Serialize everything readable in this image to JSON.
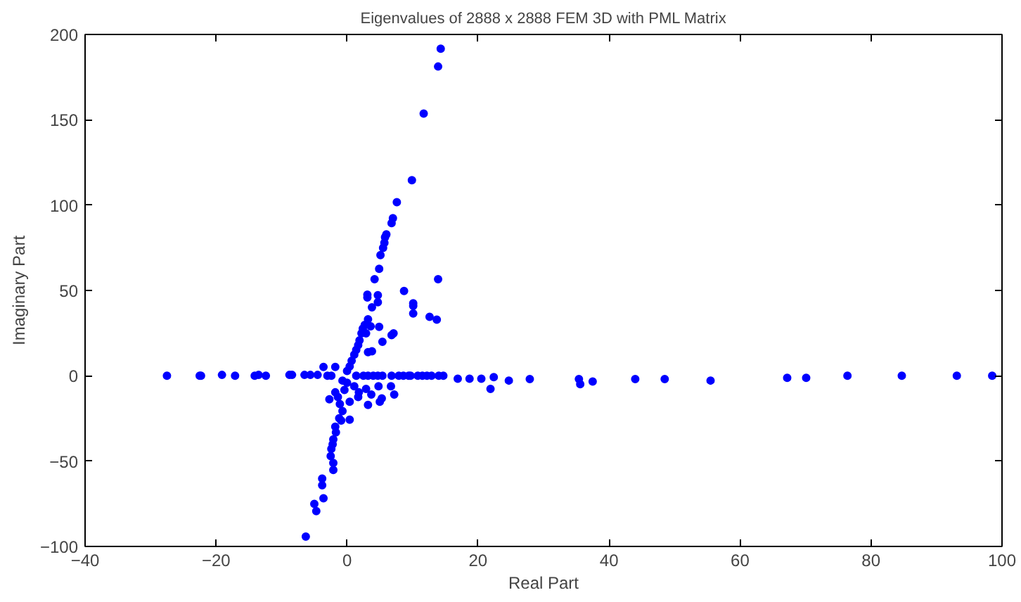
{
  "chart_data": {
    "type": "scatter",
    "title": "Eigenvalues of 2888 x 2888 FEM 3D with PML Matrix",
    "xlabel": "Real Part",
    "ylabel": "Imaginary Part",
    "xlim": [
      -40,
      100
    ],
    "xticks": [
      -40,
      -20,
      0,
      20,
      40,
      60,
      80,
      100
    ],
    "ylim": [
      -100,
      200
    ],
    "yticks": [
      -100,
      -50,
      0,
      50,
      100,
      150,
      200
    ],
    "grid": false,
    "marker": "circle",
    "series": [
      {
        "color": "#0000ff",
        "x": [
          14.3,
          13.9,
          11.7,
          9.9,
          7.6,
          7.0,
          6.8,
          6.0,
          5.8,
          5.7,
          5.5,
          5.1,
          4.9,
          4.2,
          13.9,
          8.7,
          4.7,
          3.1,
          3.1,
          4.7,
          10.1,
          3.8,
          10.1,
          10.1,
          12.6,
          13.7,
          4.9,
          7.1,
          6.8,
          5.4,
          3.8,
          3.2,
          2.7,
          2.4,
          2.2,
          1.9,
          1.7,
          1.4,
          1.1,
          0.7,
          0.4,
          0.0,
          2.9,
          3.6,
          3.2,
          -27.5,
          -22.5,
          -22.3,
          -19.1,
          -17.1,
          -14.1,
          -13.5,
          -12.4,
          -8.8,
          -8.4,
          -6.5,
          -5.6,
          -4.5,
          -3.6,
          -3.0,
          -1.8,
          -2.4,
          1.4,
          2.5,
          3.2,
          4.0,
          4.7,
          5.4,
          6.8,
          7.9,
          8.6,
          9.4,
          9.7,
          10.8,
          11.5,
          12.2,
          12.9,
          14.0,
          14.7,
          16.9,
          18.7,
          20.5,
          22.4,
          21.9,
          24.7,
          27.9,
          35.4,
          35.6,
          37.5,
          44.0,
          48.5,
          55.5,
          67.2,
          70.1,
          76.4,
          84.7,
          93.1,
          98.5,
          -1.8,
          -1.4,
          -2.7,
          -1.1,
          -0.7,
          -1.2,
          -0.9,
          0.4,
          -1.8,
          -1.7,
          -2.1,
          -2.2,
          -2.4,
          -2.5,
          -2.1,
          -2.1,
          -3.8,
          -3.8,
          -3.6,
          -5.0,
          -4.7,
          -6.3,
          1.1,
          1.8,
          2.9,
          3.7,
          4.8,
          6.7,
          7.2,
          5.3,
          5.0,
          3.2,
          1.7,
          0.4,
          -0.4,
          0.0,
          -0.7
        ],
        "values": [
          191.7,
          181.2,
          153.6,
          114.6,
          101.7,
          92.3,
          89.5,
          82.9,
          81.2,
          77.9,
          74.9,
          70.7,
          62.7,
          56.6,
          56.6,
          49.7,
          47.2,
          47.5,
          45.9,
          43.1,
          42.5,
          40.1,
          40.9,
          36.5,
          34.5,
          32.9,
          28.7,
          24.9,
          23.8,
          19.9,
          14.4,
          33.1,
          29.8,
          27.6,
          24.9,
          20.7,
          18.0,
          15.2,
          12.4,
          8.8,
          5.5,
          2.8,
          24.9,
          29.0,
          13.8,
          0,
          0,
          0,
          0.5,
          0,
          0,
          0.5,
          0,
          0.5,
          0.5,
          0.5,
          0.5,
          0.5,
          5.2,
          0,
          5.2,
          0,
          0,
          0,
          0,
          0,
          0,
          0,
          0,
          0,
          0,
          0,
          0,
          0,
          0,
          0,
          0,
          0,
          0,
          -1.7,
          -1.7,
          -1.7,
          -0.8,
          -7.7,
          -2.8,
          -1.9,
          -1.9,
          -4.9,
          -3.4,
          -1.9,
          -1.9,
          -2.8,
          -1.2,
          -1.2,
          0,
          0,
          0,
          0,
          -9.7,
          -12.4,
          -13.8,
          -16.6,
          -20.7,
          -24.9,
          -26.2,
          -25.7,
          -29.8,
          -33.1,
          -37.3,
          -40.1,
          -42.8,
          -47.0,
          -51.1,
          -55.2,
          -60.2,
          -64.1,
          -71.8,
          -75.1,
          -79.3,
          -94.2,
          -6.1,
          -9.7,
          -7.7,
          -11.0,
          -6.1,
          -6.1,
          -11.0,
          -13.3,
          -15.2,
          -17.1,
          -12.4,
          -15.2,
          -8.3,
          -4.1,
          -2.8
        ]
      }
    ]
  }
}
